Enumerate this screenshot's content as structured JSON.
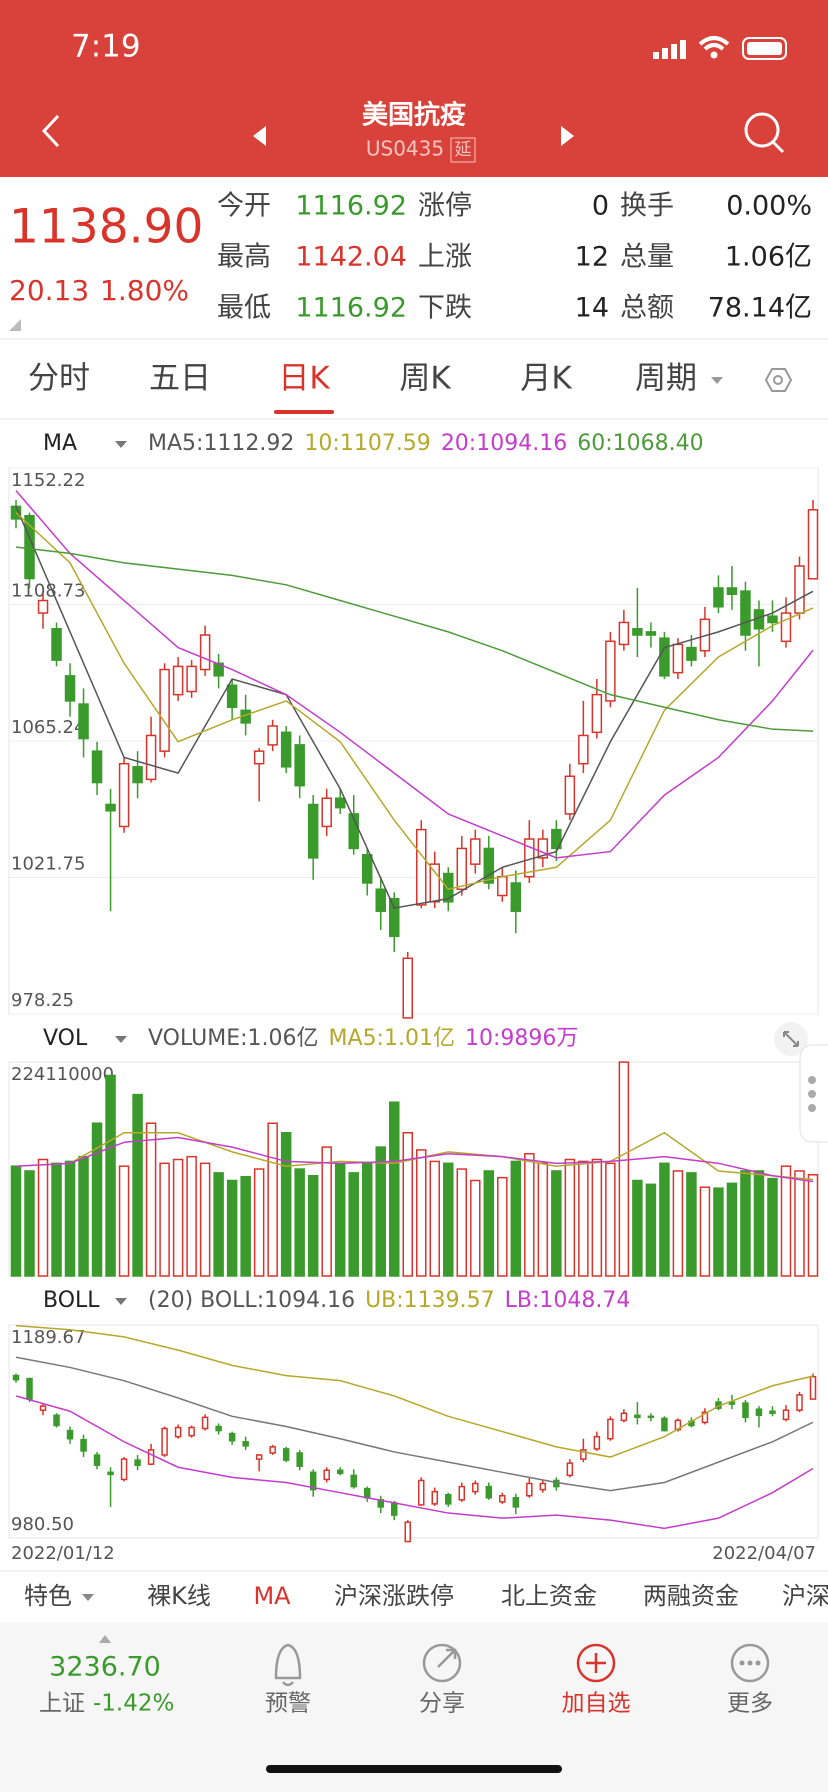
{
  "status_bar": {
    "time": "7:19"
  },
  "header": {
    "title": "美国抗疫",
    "code": "US0435",
    "tag": "延"
  },
  "quote": {
    "price": "1138.90",
    "change": "20.13",
    "change_pct": "1.80%",
    "stats": [
      [
        "今开",
        "1116.92",
        "涨停",
        "0",
        "换手",
        "0.00%"
      ],
      [
        "最高",
        "1142.04",
        "上涨",
        "12",
        "总量",
        "1.06亿"
      ],
      [
        "最低",
        "1116.92",
        "下跌",
        "14",
        "总额",
        "78.14亿"
      ]
    ]
  },
  "tabs": [
    "分时",
    "五日",
    "日K",
    "周K",
    "月K",
    "周期"
  ],
  "chart_data": [
    {
      "type": "candlestick",
      "title": "MA",
      "up_color": "#d9342b",
      "down_color": "#3a9a2c",
      "grid": true,
      "legend": [
        {
          "label": "MA5:1112.92",
          "color": "#555555"
        },
        {
          "label": "10:1107.59",
          "color": "#b5a82a"
        },
        {
          "label": "20:1094.16",
          "color": "#c43ccc"
        },
        {
          "label": "60:1068.40",
          "color": "#4f9a3a"
        }
      ],
      "ylim": [
        978.25,
        1152.22
      ],
      "yticks": [
        978.25,
        1021.75,
        1065.24,
        1108.73,
        1152.22
      ],
      "open": [
        1140,
        1137,
        1106,
        1101,
        1086,
        1077,
        1062,
        1045,
        1038,
        1057,
        1053,
        1062,
        1080,
        1081,
        1088,
        1090,
        1083,
        1075,
        1058,
        1064,
        1068,
        1064,
        1045,
        1038,
        1047,
        1042,
        1029,
        1018,
        1015,
        977,
        1013,
        1014,
        1023,
        1018,
        1026,
        1031,
        1016,
        1020,
        1022,
        1028,
        1037,
        1042,
        1058,
        1068,
        1078,
        1096,
        1101,
        1100,
        1098,
        1087,
        1095,
        1094,
        1114,
        1114,
        1113,
        1107,
        1105,
        1097,
        1106,
        1116.92
      ],
      "high": [
        1142,
        1138,
        1112,
        1103,
        1090,
        1082,
        1065,
        1050,
        1060,
        1062,
        1073,
        1090,
        1092,
        1091,
        1102,
        1093,
        1085,
        1080,
        1063,
        1072,
        1070,
        1067,
        1048,
        1050,
        1050,
        1048,
        1031,
        1022,
        1017,
        998,
        1040,
        1030,
        1025,
        1035,
        1037,
        1035,
        1025,
        1024,
        1040,
        1037,
        1040,
        1058,
        1078,
        1085,
        1100,
        1107,
        1114,
        1103,
        1100,
        1098,
        1099,
        1108,
        1118,
        1121,
        1116,
        1110,
        1110,
        1111,
        1124,
        1142.04
      ],
      "low": [
        1133,
        1114,
        1101,
        1089,
        1073,
        1060,
        1048,
        1011,
        1036,
        1047,
        1052,
        1060,
        1078,
        1079,
        1086,
        1082,
        1072,
        1067,
        1046,
        1062,
        1055,
        1047,
        1021,
        1035,
        1042,
        1029,
        1016,
        1005,
        998,
        977,
        1012,
        1012,
        1011,
        1016,
        1023,
        1018,
        1014,
        1004,
        1020,
        1025,
        1027,
        1040,
        1055,
        1066,
        1076,
        1094,
        1092,
        1095,
        1085,
        1085,
        1089,
        1092,
        1106,
        1107,
        1094,
        1089,
        1100,
        1095,
        1104,
        1116.92
      ],
      "close": [
        1136,
        1117,
        1110,
        1091,
        1078,
        1066,
        1052,
        1043,
        1058,
        1052,
        1067,
        1088,
        1089,
        1089,
        1099,
        1086,
        1076,
        1071,
        1062,
        1070,
        1057,
        1051,
        1028,
        1047,
        1044,
        1031,
        1020,
        1011,
        1003,
        996,
        1037,
        1026,
        1014,
        1031,
        1034,
        1020,
        1022,
        1011,
        1034,
        1034,
        1031,
        1054,
        1067,
        1080,
        1097,
        1103,
        1099,
        1099,
        1086,
        1096,
        1091,
        1104,
        1108,
        1112,
        1099,
        1101,
        1103,
        1106,
        1121,
        1138.9
      ],
      "lines": [
        {
          "color": "#555555",
          "x": [
            0,
            4,
            8,
            12,
            16,
            20,
            24,
            28,
            32,
            36,
            40,
            44,
            48,
            52,
            56,
            59
          ],
          "values": [
            1140,
            1100,
            1060,
            1055,
            1085,
            1080,
            1050,
            1012,
            1015,
            1025,
            1030,
            1065,
            1095,
            1100,
            1106,
            1112.92
          ]
        },
        {
          "color": "#b5a82a",
          "x": [
            0,
            4,
            8,
            12,
            16,
            20,
            24,
            28,
            32,
            36,
            40,
            44,
            48,
            52,
            56,
            59
          ],
          "values": [
            1138,
            1122,
            1090,
            1065,
            1072,
            1078,
            1065,
            1040,
            1018,
            1022,
            1025,
            1040,
            1075,
            1092,
            1102,
            1107.59
          ]
        },
        {
          "color": "#c43ccc",
          "x": [
            0,
            4,
            8,
            12,
            16,
            20,
            24,
            28,
            32,
            36,
            40,
            44,
            48,
            52,
            56,
            59
          ],
          "values": [
            1145,
            1125,
            1110,
            1095,
            1088,
            1080,
            1068,
            1055,
            1042,
            1035,
            1028,
            1030,
            1048,
            1060,
            1078,
            1094.16
          ]
        },
        {
          "color": "#4f9a3a",
          "x": [
            0,
            4,
            8,
            12,
            16,
            20,
            24,
            28,
            32,
            36,
            40,
            44,
            48,
            52,
            56,
            59
          ],
          "values": [
            1127,
            1125,
            1122,
            1120,
            1118,
            1115,
            1110,
            1105,
            1100,
            1094,
            1087,
            1080,
            1076,
            1072,
            1069,
            1068.4
          ]
        }
      ]
    },
    {
      "type": "bar",
      "title": "VOL",
      "legend": [
        {
          "label": "VOLUME:1.06亿",
          "color": "#555555"
        },
        {
          "label": "MA5:1.01亿",
          "color": "#b5a82a"
        },
        {
          "label": "10:9896万",
          "color": "#c43ccc"
        }
      ],
      "ylim": [
        0,
        224110000
      ],
      "yticks": [
        224110000
      ],
      "values": [
        115000000,
        110000000,
        122000000,
        118000000,
        120000000,
        125000000,
        160000000,
        210000000,
        115000000,
        190000000,
        160000000,
        118000000,
        122000000,
        125000000,
        118000000,
        108000000,
        100000000,
        104000000,
        112000000,
        160000000,
        150000000,
        112000000,
        105000000,
        135000000,
        118000000,
        108000000,
        118000000,
        135000000,
        182000000,
        150000000,
        132000000,
        120000000,
        118000000,
        112000000,
        100000000,
        110000000,
        103000000,
        120000000,
        128000000,
        118000000,
        110000000,
        122000000,
        120000000,
        122000000,
        118000000,
        224000000,
        100000000,
        96000000,
        118000000,
        110000000,
        108000000,
        93000000,
        92000000,
        97000000,
        110000000,
        110000000,
        102000000,
        115000000,
        110000000,
        106000000
      ],
      "lines": [
        {
          "color": "#b5a82a",
          "x": [
            0,
            4,
            8,
            12,
            16,
            20,
            24,
            28,
            32,
            36,
            40,
            44,
            48,
            52,
            56,
            59
          ],
          "values": [
            115000000,
            118000000,
            150000000,
            150000000,
            130000000,
            115000000,
            120000000,
            118000000,
            130000000,
            125000000,
            115000000,
            120000000,
            150000000,
            110000000,
            105000000,
            101000000
          ]
        },
        {
          "color": "#c43ccc",
          "x": [
            0,
            4,
            8,
            12,
            16,
            20,
            24,
            28,
            32,
            36,
            40,
            44,
            48,
            52,
            56,
            59
          ],
          "values": [
            115000000,
            118000000,
            140000000,
            145000000,
            135000000,
            120000000,
            118000000,
            120000000,
            128000000,
            125000000,
            118000000,
            120000000,
            125000000,
            118000000,
            105000000,
            98960000
          ]
        }
      ]
    },
    {
      "type": "candlestick",
      "title": "BOLL",
      "legend": [
        {
          "label": "(20) BOLL:1094.16",
          "color": "#555555"
        },
        {
          "label": "UB:1139.57",
          "color": "#b5a82a"
        },
        {
          "label": "LB:1048.74",
          "color": "#c43ccc"
        }
      ],
      "ylim": [
        980.5,
        1189.67
      ],
      "yticks": [
        {
          "value": 980.5,
          "label": "980.50"
        },
        1189.67
      ],
      "x_labels": [
        "2022/01/12",
        "2022/04/07"
      ],
      "lines": [
        {
          "color": "#777777",
          "x": [
            0,
            4,
            8,
            12,
            16,
            20,
            24,
            28,
            32,
            36,
            40,
            44,
            48,
            52,
            56,
            59
          ],
          "values": [
            1158,
            1148,
            1135,
            1118,
            1100,
            1090,
            1078,
            1065,
            1055,
            1045,
            1035,
            1027,
            1035,
            1055,
            1075,
            1094.16
          ]
        },
        {
          "color": "#b5a82a",
          "x": [
            0,
            4,
            8,
            12,
            16,
            20,
            24,
            28,
            32,
            36,
            40,
            44,
            48,
            52,
            56,
            59
          ],
          "values": [
            1189,
            1185,
            1178,
            1165,
            1150,
            1140,
            1135,
            1120,
            1100,
            1085,
            1070,
            1060,
            1080,
            1110,
            1130,
            1139.57
          ]
        },
        {
          "color": "#c43ccc",
          "x": [
            0,
            4,
            8,
            12,
            16,
            20,
            24,
            28,
            32,
            36,
            40,
            44,
            48,
            52,
            56,
            59
          ],
          "values": [
            1120,
            1105,
            1075,
            1050,
            1040,
            1035,
            1025,
            1015,
            1005,
            1000,
            1003,
            998,
            990,
            1000,
            1025,
            1048.74
          ]
        }
      ]
    }
  ],
  "menu": [
    "特色",
    "裸K线",
    "MA",
    "沪深涨跌停",
    "北上资金",
    "两融资金",
    "沪深"
  ],
  "footer": {
    "index_value": "3236.70",
    "index_name": "上证",
    "index_change": "-1.42%",
    "actions": [
      "预警",
      "分享",
      "加自选",
      "更多"
    ]
  }
}
